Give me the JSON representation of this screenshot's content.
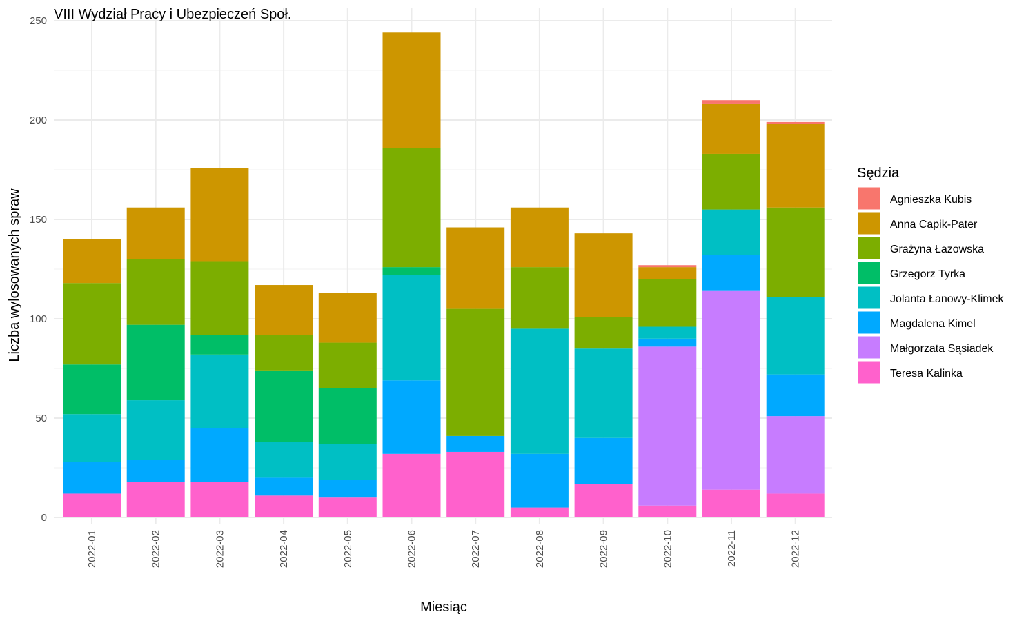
{
  "chart_data": {
    "type": "bar",
    "stacked": true,
    "title": "VIII Wydział Pracy i Ubezpieczeń Społ.",
    "xlabel": "Miesiąc",
    "ylabel": "Liczba wylosowanych spraw",
    "ylim": [
      0,
      250
    ],
    "yticks": [
      0,
      50,
      100,
      150,
      200,
      250
    ],
    "grid": true,
    "legend_title": "Sędzia",
    "legend_position": "right",
    "categories": [
      "2022-01",
      "2022-02",
      "2022-03",
      "2022-04",
      "2022-05",
      "2022-06",
      "2022-07",
      "2022-08",
      "2022-09",
      "2022-10",
      "2022-11",
      "2022-12"
    ],
    "series": [
      {
        "name": "Teresa Kalinka",
        "color": "#FF61CC",
        "values": [
          12,
          18,
          18,
          11,
          10,
          32,
          33,
          5,
          17,
          6,
          14,
          12
        ]
      },
      {
        "name": "Małgorzata Sąsiadek",
        "color": "#C77CFF",
        "values": [
          0,
          0,
          0,
          0,
          0,
          0,
          0,
          0,
          0,
          80,
          100,
          39
        ]
      },
      {
        "name": "Magdalena Kimel",
        "color": "#00A9FF",
        "values": [
          16,
          11,
          27,
          9,
          9,
          37,
          8,
          27,
          23,
          4,
          18,
          21
        ]
      },
      {
        "name": "Jolanta Łanowy-Klimek",
        "color": "#00BFC4",
        "values": [
          24,
          30,
          37,
          18,
          18,
          53,
          0,
          63,
          45,
          6,
          23,
          39
        ]
      },
      {
        "name": "Grzegorz Tyrka",
        "color": "#00BE67",
        "values": [
          25,
          38,
          10,
          36,
          28,
          4,
          0,
          0,
          0,
          0,
          0,
          0
        ]
      },
      {
        "name": "Grażyna Łazowska",
        "color": "#7CAE00",
        "values": [
          41,
          33,
          37,
          18,
          23,
          60,
          64,
          31,
          16,
          24,
          28,
          45
        ]
      },
      {
        "name": "Anna Capik-Pater",
        "color": "#CD9600",
        "values": [
          22,
          26,
          47,
          25,
          25,
          58,
          41,
          30,
          42,
          6,
          25,
          42
        ]
      },
      {
        "name": "Agnieszka Kubis",
        "color": "#F8766D",
        "values": [
          0,
          0,
          0,
          0,
          0,
          0,
          0,
          0,
          0,
          1,
          2,
          1
        ]
      }
    ],
    "legend_order": [
      "Agnieszka Kubis",
      "Anna Capik-Pater",
      "Grażyna Łazowska",
      "Grzegorz Tyrka",
      "Jolanta Łanowy-Klimek",
      "Magdalena Kimel",
      "Małgorzata Sąsiadek",
      "Teresa Kalinka"
    ]
  }
}
